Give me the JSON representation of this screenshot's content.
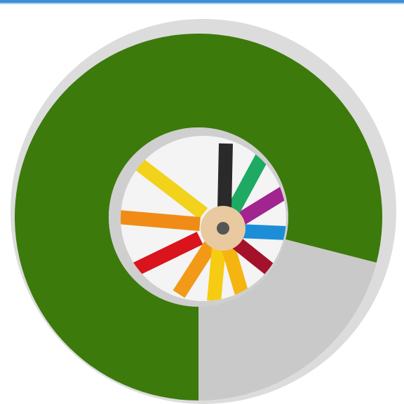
{
  "chart_data": {
    "type": "donut",
    "values": [
      79,
      21
    ],
    "colors": [
      "#3c7a0c",
      "#c9c9c9"
    ]
  }
}
